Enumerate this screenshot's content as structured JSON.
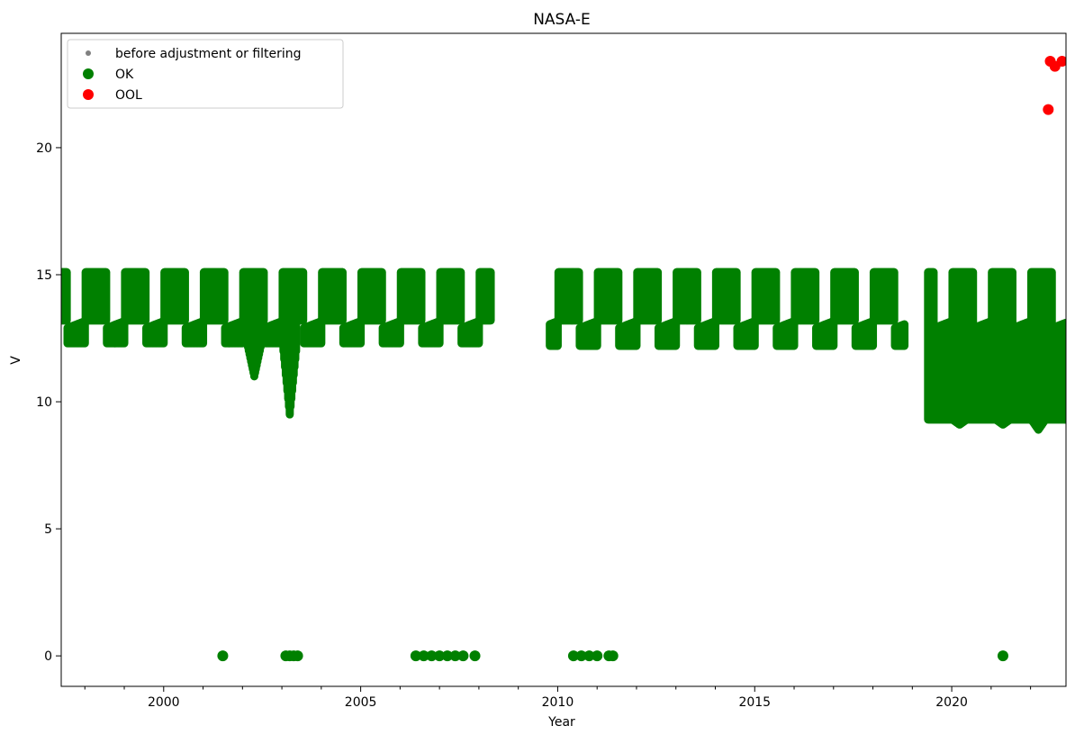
{
  "chart_data": {
    "type": "scatter",
    "title": "NASA-E",
    "xlabel": "Year",
    "ylabel": "V",
    "xlim": [
      1997.4,
      2022.9
    ],
    "ylim": [
      -1.2,
      24.5
    ],
    "xticks": [
      2000,
      2005,
      2010,
      2015,
      2020
    ],
    "xtick_labels": [
      "2000",
      "2005",
      "2010",
      "2015",
      "2020"
    ],
    "yticks": [
      0,
      5,
      10,
      15,
      20
    ],
    "ytick_labels": [
      "0",
      "5",
      "10",
      "15",
      "20"
    ],
    "grid": false,
    "legend_placement": "upper-left",
    "legend": [
      {
        "label": "before adjustment or filtering",
        "color": "#808080",
        "marker": "small-dot"
      },
      {
        "label": "OK",
        "color": "#008000",
        "marker": "dot"
      },
      {
        "label": "OOL",
        "color": "#ff0000",
        "marker": "dot"
      }
    ],
    "series": [
      {
        "name": "OK",
        "color": "#008000",
        "description_segments": [
          {
            "start": 1997.4,
            "end": 2008.3,
            "annual_low": 12.3,
            "annual_high": 15.1
          },
          {
            "start": 2009.8,
            "end": 2018.8,
            "annual_low": 12.2,
            "annual_high": 15.1
          },
          {
            "start": 2019.4,
            "end": 2022.9,
            "annual_low": 9.3,
            "annual_high": 15.1
          }
        ],
        "dips": [
          {
            "x": 2002.3,
            "y": 11.0
          },
          {
            "x": 2003.2,
            "y": 9.5
          },
          {
            "x": 2020.2,
            "y": 9.1
          },
          {
            "x": 2021.3,
            "y": 9.1
          },
          {
            "x": 2022.2,
            "y": 8.9
          }
        ],
        "zero_points": [
          2001.5,
          2003.1,
          2003.2,
          2003.3,
          2003.4,
          2006.4,
          2006.6,
          2006.8,
          2007.0,
          2007.2,
          2007.4,
          2007.6,
          2007.9,
          2010.4,
          2010.6,
          2010.8,
          2011.0,
          2011.3,
          2011.4,
          2021.3
        ]
      },
      {
        "name": "OOL",
        "color": "#ff0000",
        "points": [
          {
            "x": 2022.45,
            "y": 21.5
          },
          {
            "x": 2022.5,
            "y": 23.4
          },
          {
            "x": 2022.62,
            "y": 23.2
          },
          {
            "x": 2022.8,
            "y": 23.4
          }
        ]
      }
    ]
  }
}
